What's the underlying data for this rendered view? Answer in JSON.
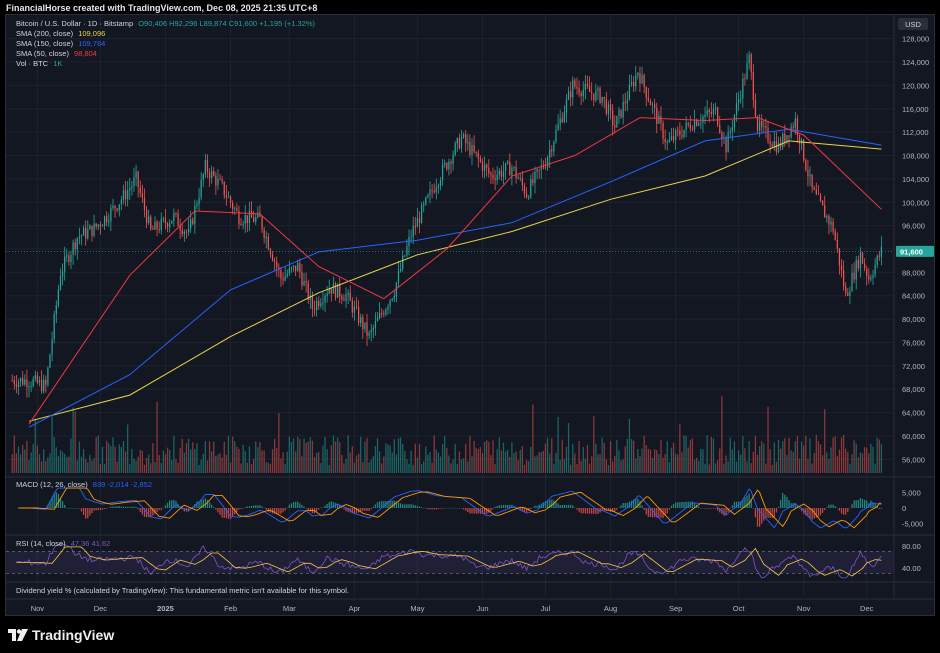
{
  "header": {
    "attribution": "FinancialHorse created with TradingView.com, Dec 08, 2025 21:35 UTC+8"
  },
  "legend": {
    "symbol": "Bitcoin / U.S. Dollar · 1D · Bitstamp",
    "ohlc": "O90,406 H92,296 L89,874 C91,600 +1,195 (+1.32%)",
    "sma200_label": "SMA (200, close)",
    "sma200_value": "109,096",
    "sma150_label": "SMA (150, close)",
    "sma150_value": "109,784",
    "sma50_label": "SMA (50, close)",
    "sma50_value": "98,804",
    "vol_label": "Vol · BTC",
    "vol_value": "1K"
  },
  "currency_button": "USD",
  "price_axis": [
    "128,000",
    "124,000",
    "120,000",
    "116,000",
    "112,000",
    "108,000",
    "104,000",
    "100,000",
    "96,000",
    "92,000",
    "88,000",
    "84,000",
    "80,000",
    "76,000",
    "72,000",
    "68,000",
    "64,000",
    "60,000",
    "56,000"
  ],
  "last_price_label": "91,600",
  "macd": {
    "label": "MACD (12, 26, close)",
    "values": "839  -2,014  -2,852",
    "axis": [
      "5,000",
      "0",
      "-5,000"
    ]
  },
  "rsi": {
    "label": "RSI (14, close)",
    "values": "47.36  41.62",
    "axis": [
      "80.00",
      "40.00"
    ]
  },
  "dividend_note": "Dividend yield % (calculated by TradingView): This fundamental metric isn't available for this symbol.",
  "time_axis": [
    "Nov",
    "Dec",
    "2025",
    "Feb",
    "Mar",
    "Apr",
    "May",
    "Jun",
    "Jul",
    "Aug",
    "Sep",
    "Oct",
    "Nov",
    "Dec"
  ],
  "brand": "TradingView",
  "colors": {
    "up": "#26a69a",
    "down": "#ef5350",
    "sma200": "#e8d44d",
    "sma150": "#2962ff",
    "sma50": "#f23645",
    "macd_line": "#2962ff",
    "signal_line": "#ff9800",
    "rsi_line": "#7e57c2",
    "rsi_ma": "#f7c948"
  },
  "chart_data": {
    "type": "candlestick",
    "title": "Bitcoin / U.S. Dollar · 1D · Bitstamp",
    "x_months": [
      "Nov",
      "Dec",
      "Jan 2025",
      "Feb",
      "Mar",
      "Apr",
      "May",
      "Jun",
      "Jul",
      "Aug",
      "Sep",
      "Oct",
      "Nov",
      "Dec"
    ],
    "ylim": [
      54000,
      130000
    ],
    "close_path": [
      {
        "x": "2024-10-28",
        "y": 69500
      },
      {
        "x": "2024-11-05",
        "y": 68500
      },
      {
        "x": "2024-11-12",
        "y": 88000
      },
      {
        "x": "2024-11-20",
        "y": 94000
      },
      {
        "x": "2024-11-28",
        "y": 95500
      },
      {
        "x": "2024-12-05",
        "y": 98000
      },
      {
        "x": "2024-12-12",
        "y": 101000
      },
      {
        "x": "2024-12-18",
        "y": 104000
      },
      {
        "x": "2024-12-25",
        "y": 95000
      },
      {
        "x": "2025-01-05",
        "y": 97500
      },
      {
        "x": "2025-01-12",
        "y": 94500
      },
      {
        "x": "2025-01-20",
        "y": 106000
      },
      {
        "x": "2025-01-28",
        "y": 102500
      },
      {
        "x": "2025-02-05",
        "y": 97500
      },
      {
        "x": "2025-02-15",
        "y": 97000
      },
      {
        "x": "2025-02-25",
        "y": 87000
      },
      {
        "x": "2025-03-05",
        "y": 89000
      },
      {
        "x": "2025-03-12",
        "y": 82000
      },
      {
        "x": "2025-03-20",
        "y": 85500
      },
      {
        "x": "2025-03-28",
        "y": 84000
      },
      {
        "x": "2025-04-08",
        "y": 77000
      },
      {
        "x": "2025-04-20",
        "y": 85000
      },
      {
        "x": "2025-04-28",
        "y": 94500
      },
      {
        "x": "2025-05-10",
        "y": 103500
      },
      {
        "x": "2025-05-22",
        "y": 111000
      },
      {
        "x": "2025-06-05",
        "y": 104500
      },
      {
        "x": "2025-06-15",
        "y": 106000
      },
      {
        "x": "2025-06-22",
        "y": 101500
      },
      {
        "x": "2025-07-01",
        "y": 107000
      },
      {
        "x": "2025-07-10",
        "y": 116000
      },
      {
        "x": "2025-07-14",
        "y": 120000
      },
      {
        "x": "2025-07-28",
        "y": 118000
      },
      {
        "x": "2025-08-03",
        "y": 113000
      },
      {
        "x": "2025-08-14",
        "y": 122500
      },
      {
        "x": "2025-08-28",
        "y": 110000
      },
      {
        "x": "2025-09-10",
        "y": 114000
      },
      {
        "x": "2025-09-20",
        "y": 115500
      },
      {
        "x": "2025-09-25",
        "y": 109500
      },
      {
        "x": "2025-10-06",
        "y": 124500
      },
      {
        "x": "2025-10-10",
        "y": 113000
      },
      {
        "x": "2025-10-20",
        "y": 109500
      },
      {
        "x": "2025-10-28",
        "y": 114000
      },
      {
        "x": "2025-11-05",
        "y": 102000
      },
      {
        "x": "2025-11-15",
        "y": 95500
      },
      {
        "x": "2025-11-21",
        "y": 84000
      },
      {
        "x": "2025-11-28",
        "y": 91000
      },
      {
        "x": "2025-12-02",
        "y": 87000
      },
      {
        "x": "2025-12-08",
        "y": 91600
      }
    ],
    "series": [
      {
        "name": "SMA (200, close)",
        "last": 109096,
        "points": [
          {
            "x": "2024-10-28",
            "y": 62500
          },
          {
            "x": "2024-12-15",
            "y": 67000
          },
          {
            "x": "2025-02-01",
            "y": 77000
          },
          {
            "x": "2025-03-15",
            "y": 84500
          },
          {
            "x": "2025-05-01",
            "y": 91000
          },
          {
            "x": "2025-06-15",
            "y": 95000
          },
          {
            "x": "2025-08-01",
            "y": 100500
          },
          {
            "x": "2025-09-15",
            "y": 104500
          },
          {
            "x": "2025-10-25",
            "y": 110500
          },
          {
            "x": "2025-12-08",
            "y": 109096
          }
        ]
      },
      {
        "name": "SMA (150, close)",
        "last": 109784,
        "points": [
          {
            "x": "2024-10-28",
            "y": 61500
          },
          {
            "x": "2024-12-15",
            "y": 70500
          },
          {
            "x": "2025-02-01",
            "y": 85000
          },
          {
            "x": "2025-03-15",
            "y": 91500
          },
          {
            "x": "2025-05-01",
            "y": 93500
          },
          {
            "x": "2025-06-15",
            "y": 96500
          },
          {
            "x": "2025-08-01",
            "y": 103500
          },
          {
            "x": "2025-09-15",
            "y": 110500
          },
          {
            "x": "2025-10-25",
            "y": 112500
          },
          {
            "x": "2025-12-08",
            "y": 109784
          }
        ]
      },
      {
        "name": "SMA (50, close)",
        "last": 98804,
        "points": [
          {
            "x": "2024-10-28",
            "y": 62000
          },
          {
            "x": "2024-12-15",
            "y": 87500
          },
          {
            "x": "2025-01-15",
            "y": 98500
          },
          {
            "x": "2025-02-15",
            "y": 98000
          },
          {
            "x": "2025-03-15",
            "y": 89000
          },
          {
            "x": "2025-04-15",
            "y": 83500
          },
          {
            "x": "2025-05-15",
            "y": 92000
          },
          {
            "x": "2025-06-15",
            "y": 104500
          },
          {
            "x": "2025-07-15",
            "y": 108000
          },
          {
            "x": "2025-08-15",
            "y": 114500
          },
          {
            "x": "2025-09-15",
            "y": 114000
          },
          {
            "x": "2025-10-10",
            "y": 114500
          },
          {
            "x": "2025-11-01",
            "y": 111500
          },
          {
            "x": "2025-12-08",
            "y": 98804
          }
        ]
      }
    ],
    "macd": {
      "macd": 839,
      "signal": -2014,
      "histogram": -2852,
      "ylim": [
        -7500,
        7500
      ]
    },
    "rsi": {
      "rsi": 47.36,
      "ma": 41.62,
      "ylim": [
        20,
        85
      ]
    }
  }
}
